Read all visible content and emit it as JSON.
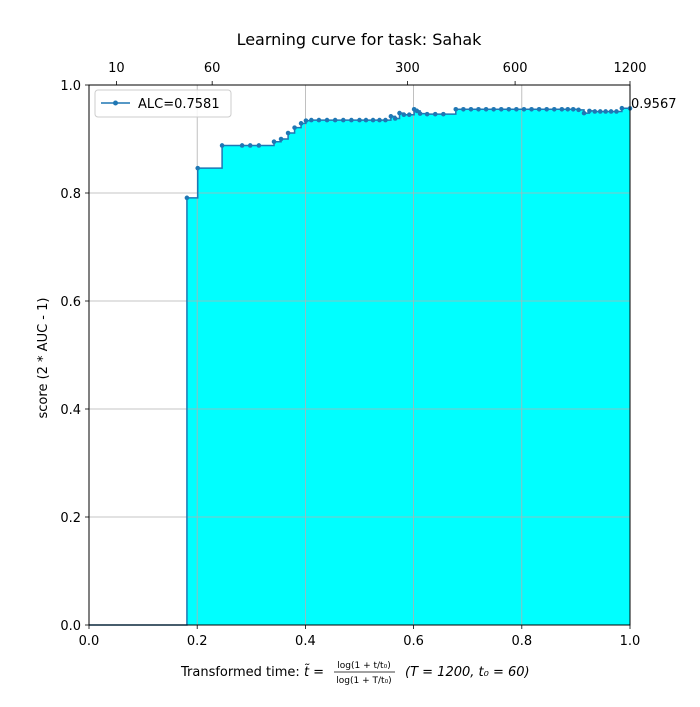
{
  "chart_data": {
    "type": "line",
    "title": "Learning curve for task: Sahak",
    "xlabel_parts": {
      "prefix": "Transformed time: ",
      "tvar": "t̃",
      "eq": " = ",
      "numerator": "log(1 + t/t₀)",
      "denominator": "log(1 + T/t₀)",
      "params": "(T = 1200,  t₀ = 60)"
    },
    "ylabel": "score (2 * AUC - 1)",
    "xlim": [
      0.0,
      1.0
    ],
    "ylim": [
      0.0,
      1.0
    ],
    "x_ticks": [
      "0.0",
      "0.2",
      "0.4",
      "0.6",
      "0.8",
      "1.0"
    ],
    "y_ticks": [
      "0.0",
      "0.2",
      "0.4",
      "0.6",
      "0.8",
      "1.0"
    ],
    "top_ticks": [
      {
        "t": 10,
        "label": "10"
      },
      {
        "t": 60,
        "label": "60"
      },
      {
        "t": 300,
        "label": "300"
      },
      {
        "t": 600,
        "label": "600"
      },
      {
        "t": 1200,
        "label": "1200"
      }
    ],
    "grid": true,
    "legend": {
      "placement": "top-left",
      "label": "ALC=0.7581"
    },
    "final_score_label": "0.9567",
    "series": [
      {
        "name": "ALC=0.7581",
        "color": "#1f77b4",
        "fill_color": "#00ffff",
        "step": "post",
        "points": [
          [
            0.0,
            0.0
          ],
          [
            0.181,
            0.791
          ],
          [
            0.201,
            0.846
          ],
          [
            0.246,
            0.888
          ],
          [
            0.283,
            0.888
          ],
          [
            0.298,
            0.888
          ],
          [
            0.314,
            0.888
          ],
          [
            0.342,
            0.895
          ],
          [
            0.355,
            0.9
          ],
          [
            0.368,
            0.911
          ],
          [
            0.38,
            0.921
          ],
          [
            0.392,
            0.929
          ],
          [
            0.401,
            0.934
          ],
          [
            0.411,
            0.935
          ],
          [
            0.425,
            0.935
          ],
          [
            0.44,
            0.935
          ],
          [
            0.455,
            0.935
          ],
          [
            0.47,
            0.935
          ],
          [
            0.485,
            0.935
          ],
          [
            0.5,
            0.935
          ],
          [
            0.512,
            0.935
          ],
          [
            0.525,
            0.935
          ],
          [
            0.537,
            0.935
          ],
          [
            0.548,
            0.935
          ],
          [
            0.558,
            0.942
          ],
          [
            0.566,
            0.938
          ],
          [
            0.574,
            0.948
          ],
          [
            0.582,
            0.945
          ],
          [
            0.592,
            0.945
          ],
          [
            0.601,
            0.955
          ],
          [
            0.606,
            0.952
          ],
          [
            0.612,
            0.947
          ],
          [
            0.625,
            0.946
          ],
          [
            0.64,
            0.946
          ],
          [
            0.655,
            0.946
          ],
          [
            0.678,
            0.955
          ],
          [
            0.692,
            0.955
          ],
          [
            0.706,
            0.955
          ],
          [
            0.72,
            0.955
          ],
          [
            0.734,
            0.955
          ],
          [
            0.748,
            0.955
          ],
          [
            0.762,
            0.955
          ],
          [
            0.776,
            0.955
          ],
          [
            0.79,
            0.955
          ],
          [
            0.804,
            0.955
          ],
          [
            0.818,
            0.955
          ],
          [
            0.832,
            0.955
          ],
          [
            0.846,
            0.955
          ],
          [
            0.86,
            0.955
          ],
          [
            0.874,
            0.955
          ],
          [
            0.885,
            0.955
          ],
          [
            0.895,
            0.955
          ],
          [
            0.905,
            0.954
          ],
          [
            0.915,
            0.948
          ],
          [
            0.925,
            0.952
          ],
          [
            0.935,
            0.951
          ],
          [
            0.945,
            0.951
          ],
          [
            0.955,
            0.951
          ],
          [
            0.965,
            0.951
          ],
          [
            0.975,
            0.951
          ],
          [
            0.985,
            0.957
          ],
          [
            1.0,
            0.9567
          ]
        ]
      }
    ]
  }
}
